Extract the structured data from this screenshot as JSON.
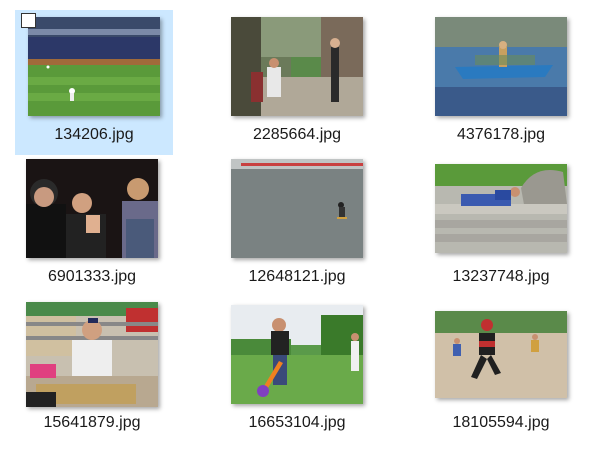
{
  "view": {
    "accent_selection": "#cce8ff"
  },
  "files": [
    {
      "name": "134206.jpg",
      "selected": true,
      "thumb_icon": "baseball-stadium-photo"
    },
    {
      "name": "2285664.jpg",
      "selected": false,
      "thumb_icon": "street-people-photo"
    },
    {
      "name": "4376178.jpg",
      "selected": false,
      "thumb_icon": "boat-on-water-photo"
    },
    {
      "name": "6901333.jpg",
      "selected": false,
      "thumb_icon": "men-in-dark-room-photo"
    },
    {
      "name": "12648121.jpg",
      "selected": false,
      "thumb_icon": "skateboarder-on-concrete-photo"
    },
    {
      "name": "13237748.jpg",
      "selected": false,
      "thumb_icon": "person-on-steps-photo"
    },
    {
      "name": "15641879.jpg",
      "selected": false,
      "thumb_icon": "store-clerk-photo"
    },
    {
      "name": "16653104.jpg",
      "selected": false,
      "thumb_icon": "kid-with-bat-photo"
    },
    {
      "name": "18105594.jpg",
      "selected": false,
      "thumb_icon": "softball-runner-photo"
    }
  ]
}
